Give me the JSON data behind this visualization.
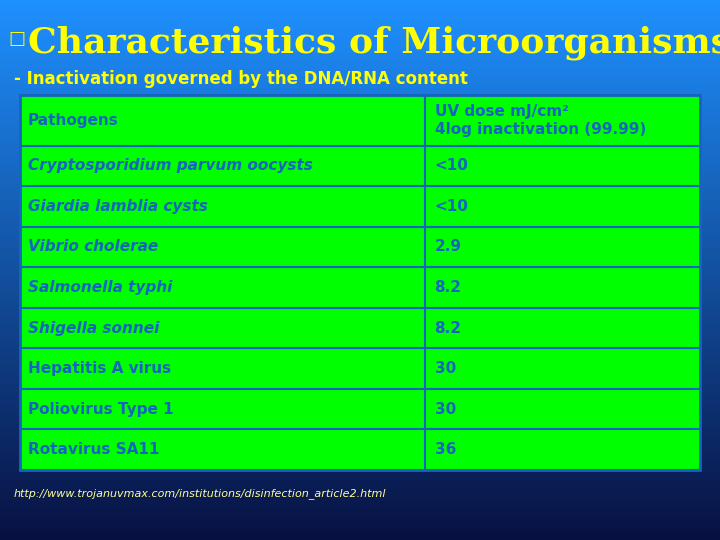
{
  "title": "Characteristics of Microorganisms",
  "title_color": "#FFFF00",
  "bullet": "□",
  "subtitle": "- Inactivation governed by the DNA/RNA content",
  "subtitle_color": "#FFFF00",
  "background_top": "#1E90FF",
  "background_bottom": "#0A1050",
  "table_bg": "#00FF00",
  "table_border": "#1565C0",
  "text_color": "#1565C0",
  "col_header": [
    "Pathogens",
    "UV dose mJ/cm²\n4log inactivation (99.99)"
  ],
  "rows": [
    [
      "Cryptosporidium parvum oocysts",
      "<10"
    ],
    [
      "Giardia lamblia cysts",
      "<10"
    ],
    [
      "Vibrio cholerae",
      "2.9"
    ],
    [
      "Salmonella typhi",
      "8.2"
    ],
    [
      "Shigella sonnei",
      "8.2"
    ],
    [
      "Hepatitis A virus",
      "30"
    ],
    [
      "Poliovirus Type 1",
      "30"
    ],
    [
      "Rotavirus SA11",
      "36"
    ]
  ],
  "italic_rows": [
    0,
    1,
    2,
    3,
    4
  ],
  "footer": "http://www.trojanuvmax.com/institutions/disinfection_article2.html",
  "footer_color": "#FFFF99"
}
